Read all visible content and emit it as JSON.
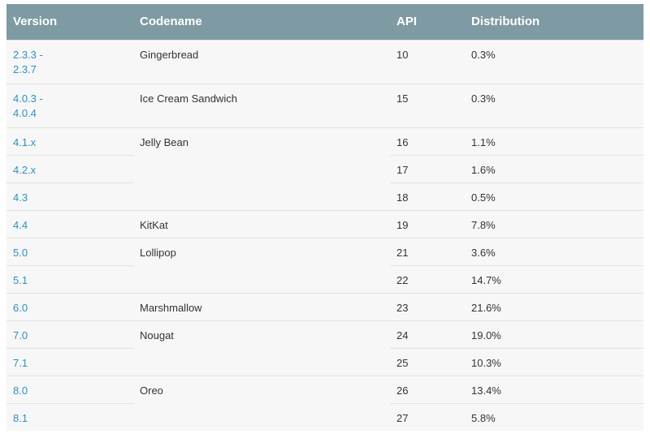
{
  "headers": {
    "version": "Version",
    "codename": "Codename",
    "api": "API",
    "distribution": "Distribution"
  },
  "rows": [
    {
      "version": "2.3.3 -\n2.3.7",
      "codename": "Gingerbread",
      "api": "10",
      "distribution": "0.3%"
    },
    {
      "version": "4.0.3 -\n4.0.4",
      "codename": "Ice Cream Sandwich",
      "api": "15",
      "distribution": "0.3%"
    },
    {
      "version": "4.1.x",
      "codename": "Jelly Bean",
      "api": "16",
      "distribution": "1.1%"
    },
    {
      "version": "4.2.x",
      "codename": "",
      "api": "17",
      "distribution": "1.6%"
    },
    {
      "version": "4.3",
      "codename": "",
      "api": "18",
      "distribution": "0.5%"
    },
    {
      "version": "4.4",
      "codename": "KitKat",
      "api": "19",
      "distribution": "7.8%"
    },
    {
      "version": "5.0",
      "codename": "Lollipop",
      "api": "21",
      "distribution": "3.6%"
    },
    {
      "version": "5.1",
      "codename": "",
      "api": "22",
      "distribution": "14.7%"
    },
    {
      "version": "6.0",
      "codename": "Marshmallow",
      "api": "23",
      "distribution": "21.6%"
    },
    {
      "version": "7.0",
      "codename": "Nougat",
      "api": "24",
      "distribution": "19.0%"
    },
    {
      "version": "7.1",
      "codename": "",
      "api": "25",
      "distribution": "10.3%"
    },
    {
      "version": "8.0",
      "codename": "Oreo",
      "api": "26",
      "distribution": "13.4%"
    },
    {
      "version": "8.1",
      "codename": "",
      "api": "27",
      "distribution": "5.8%"
    }
  ],
  "colors": {
    "header_bg": "#7e9aa2",
    "header_text": "#ffffff",
    "row_bg": "#f7f7f7",
    "link": "#2a91bf",
    "border": "#e2e2e2"
  }
}
